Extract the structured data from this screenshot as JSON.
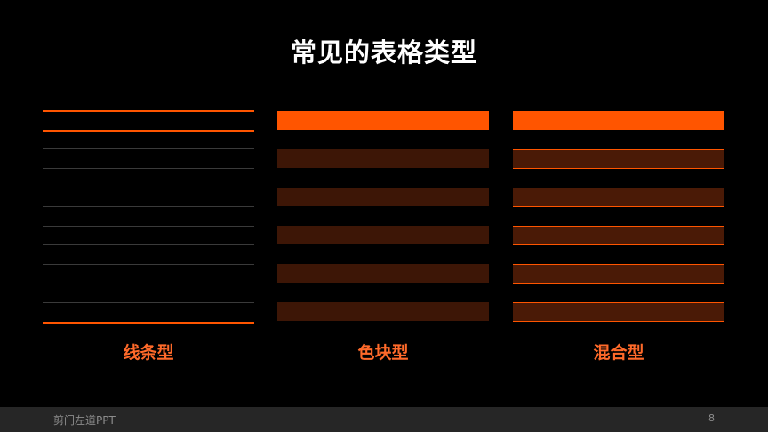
{
  "slide": {
    "title": "常见的表格类型",
    "footer_brand": "剪门左道PPT",
    "page_number": "8"
  },
  "colors": {
    "background": "#000000",
    "accent": "#ff5500",
    "accent_label": "#ff6a2a",
    "block_fill": "#3d1606",
    "mixed_fill": "#4a1a06",
    "thin_line": "#3a3a3a",
    "footer_bg": "#262626"
  },
  "tables": [
    {
      "id": "line",
      "label": "线条型",
      "style": "lines",
      "data_rows": 10
    },
    {
      "id": "block",
      "label": "色块型",
      "style": "blocks",
      "data_rows": 5
    },
    {
      "id": "mixed",
      "label": "混合型",
      "style": "mixed",
      "data_rows": 5
    }
  ]
}
